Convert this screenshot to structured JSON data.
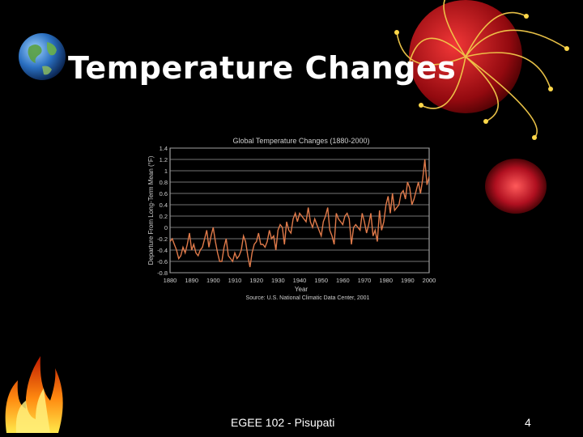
{
  "slide": {
    "title": "Temperature Changes",
    "footer_text": "EGEE 102 - Pisupati",
    "page_number": "4"
  },
  "colors": {
    "background": "#000000",
    "line": "#e07a4a",
    "gridline": "#9a9a9a"
  },
  "icons": [
    "globe-icon",
    "flame-icon",
    "decorative-ornament-icon",
    "red-orb-icon"
  ],
  "chart_data": {
    "type": "line",
    "title": "Global Temperature Changes (1880-2000)",
    "xlabel": "Year",
    "ylabel": "Departure From Long-Term Mean (°F)",
    "source": "Source: U.S. National Climatic Data Center, 2001",
    "xlim": [
      1880,
      2000
    ],
    "ylim": [
      -0.8,
      1.4
    ],
    "x_ticks": [
      "1880",
      "1890",
      "1900",
      "1910",
      "1920",
      "1930",
      "1940",
      "1950",
      "1960",
      "1970",
      "1980",
      "1990",
      "2000"
    ],
    "y_ticks": [
      "-0.8",
      "-0.6",
      "-0.4",
      "-0.2",
      "0",
      "0.2",
      "0.4",
      "0.6",
      "0.8",
      "1",
      "1.2",
      "1.4"
    ],
    "grid": true,
    "series": [
      {
        "x": [
          1880,
          1881,
          1882,
          1883,
          1884,
          1885,
          1886,
          1887,
          1888,
          1889,
          1890,
          1891,
          1892,
          1893,
          1894,
          1895,
          1896,
          1897,
          1898,
          1899,
          1900,
          1901,
          1902,
          1903,
          1904,
          1905,
          1906,
          1907,
          1908,
          1909,
          1910,
          1911,
          1912,
          1913,
          1914,
          1915,
          1916,
          1917,
          1918,
          1919,
          1920,
          1921,
          1922,
          1923,
          1924,
          1925,
          1926,
          1927,
          1928,
          1929,
          1930,
          1931,
          1932,
          1933,
          1934,
          1935,
          1936,
          1937,
          1938,
          1939,
          1940,
          1941,
          1942,
          1943,
          1944,
          1945,
          1946,
          1947,
          1948,
          1949,
          1950,
          1951,
          1952,
          1953,
          1954,
          1955,
          1956,
          1957,
          1958,
          1959,
          1960,
          1961,
          1962,
          1963,
          1964,
          1965,
          1966,
          1967,
          1968,
          1969,
          1970,
          1971,
          1972,
          1973,
          1974,
          1975,
          1976,
          1977,
          1978,
          1979,
          1980,
          1981,
          1982,
          1983,
          1984,
          1985,
          1986,
          1987,
          1988,
          1989,
          1990,
          1991,
          1992,
          1993,
          1994,
          1995,
          1996,
          1997,
          1998,
          1999,
          2000
        ],
        "values": [
          -0.25,
          -0.2,
          -0.3,
          -0.4,
          -0.55,
          -0.5,
          -0.35,
          -0.45,
          -0.3,
          -0.1,
          -0.4,
          -0.3,
          -0.45,
          -0.5,
          -0.4,
          -0.35,
          -0.2,
          -0.05,
          -0.35,
          -0.15,
          0,
          -0.25,
          -0.45,
          -0.6,
          -0.6,
          -0.35,
          -0.2,
          -0.5,
          -0.55,
          -0.6,
          -0.45,
          -0.55,
          -0.5,
          -0.4,
          -0.15,
          -0.25,
          -0.5,
          -0.7,
          -0.45,
          -0.3,
          -0.25,
          -0.1,
          -0.3,
          -0.3,
          -0.35,
          -0.25,
          -0.05,
          -0.2,
          -0.15,
          -0.4,
          -0.05,
          0.05,
          0.0,
          -0.3,
          0.1,
          -0.05,
          -0.1,
          0.15,
          0.25,
          0.1,
          0.25,
          0.2,
          0.15,
          0.1,
          0.35,
          0.1,
          0.0,
          0.15,
          0.05,
          -0.05,
          -0.15,
          0.1,
          0.2,
          0.35,
          -0.05,
          -0.15,
          -0.3,
          0.25,
          0.15,
          0.1,
          0.05,
          0.2,
          0.25,
          0.15,
          -0.3,
          0.0,
          0.05,
          0.0,
          -0.05,
          0.25,
          0.1,
          -0.1,
          0.05,
          0.25,
          -0.15,
          -0.05,
          -0.25,
          0.3,
          -0.05,
          0.1,
          0.4,
          0.55,
          0.25,
          0.6,
          0.3,
          0.35,
          0.4,
          0.6,
          0.65,
          0.5,
          0.8,
          0.7,
          0.4,
          0.5,
          0.65,
          0.8,
          0.6,
          0.85,
          1.2,
          0.75,
          0.9
        ]
      }
    ]
  }
}
